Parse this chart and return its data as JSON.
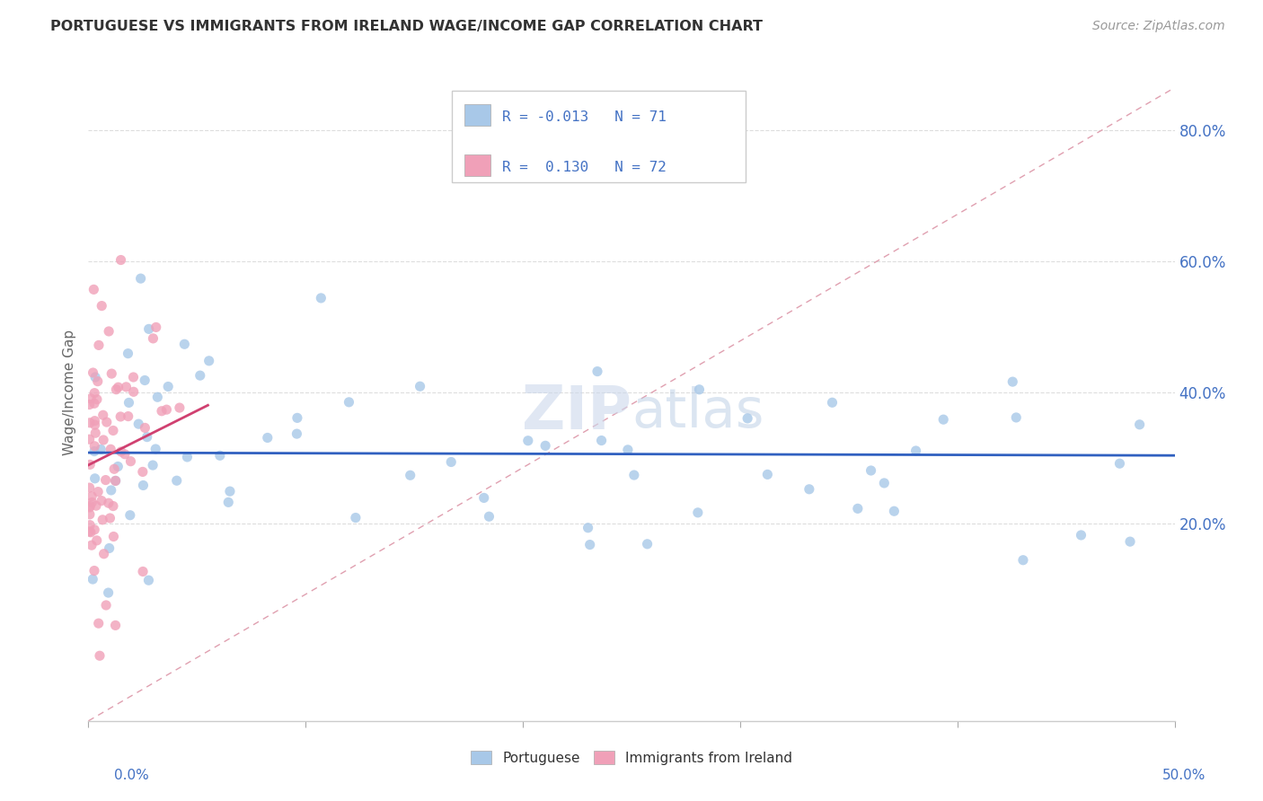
{
  "title": "PORTUGUESE VS IMMIGRANTS FROM IRELAND WAGE/INCOME GAP CORRELATION CHART",
  "source": "Source: ZipAtlas.com",
  "ylabel": "Wage/Income Gap",
  "xlim": [
    0.0,
    0.5
  ],
  "ylim": [
    -0.1,
    0.9
  ],
  "yticks": [
    0.2,
    0.4,
    0.6,
    0.8
  ],
  "ytick_labels": [
    "20.0%",
    "40.0%",
    "60.0%",
    "80.0%"
  ],
  "xtick_positions": [
    0.0,
    0.1,
    0.2,
    0.3,
    0.4,
    0.5
  ],
  "legend_R1": "-0.013",
  "legend_N1": "71",
  "legend_R2": "0.130",
  "legend_N2": "72",
  "blue_color": "#A8C8E8",
  "pink_color": "#F0A0B8",
  "blue_line_color": "#3060C0",
  "pink_line_color": "#D04070",
  "diag_line_color": "#E0A0B0",
  "grid_color": "#DDDDDD",
  "background_color": "#FFFFFF",
  "watermark_zip": "ZIP",
  "watermark_atlas": "atlas",
  "text_color": "#4472C4",
  "title_color": "#333333"
}
